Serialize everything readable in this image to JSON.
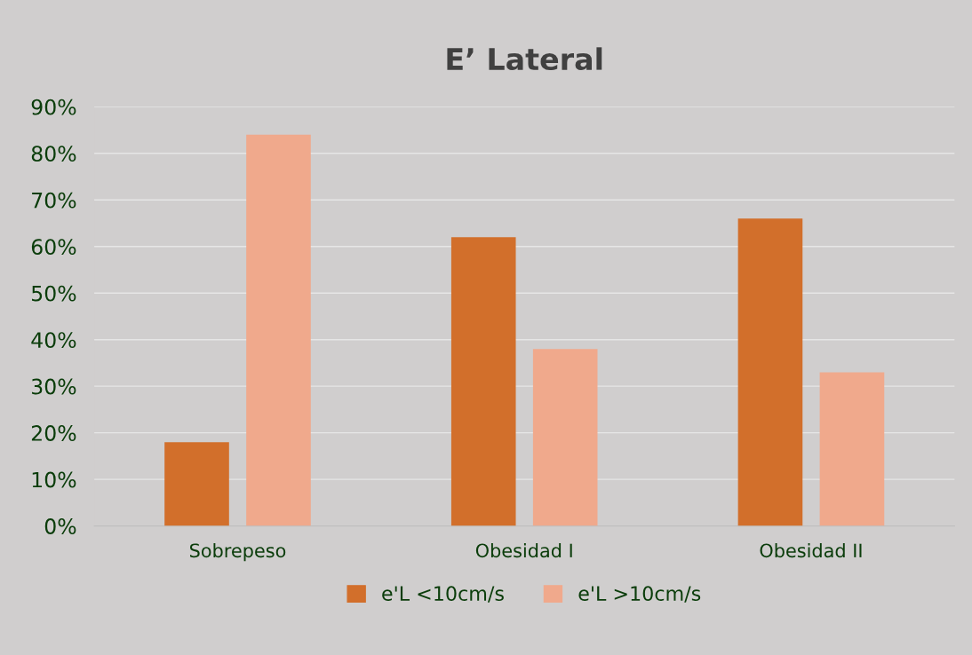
{
  "chart_data": {
    "type": "bar",
    "title": "E’ Lateral",
    "categories": [
      "Sobrepeso",
      "Obesidad I",
      "Obesidad II"
    ],
    "series": [
      {
        "name": "e'L <10cm/s",
        "color": "#d26f2b",
        "values": [
          18,
          62,
          66
        ]
      },
      {
        "name": "e'L >10cm/s",
        "color": "#f0a98c",
        "values": [
          84,
          38,
          33
        ]
      }
    ],
    "ylim": [
      0,
      90
    ],
    "yticks": [
      {
        "value": 0,
        "label": "0%"
      },
      {
        "value": 10,
        "label": "10%"
      },
      {
        "value": 20,
        "label": "20%"
      },
      {
        "value": 30,
        "label": "30%"
      },
      {
        "value": 40,
        "label": "40%"
      },
      {
        "value": 50,
        "label": "50%"
      },
      {
        "value": 60,
        "label": "60%"
      },
      {
        "value": 70,
        "label": "70%"
      },
      {
        "value": 80,
        "label": "80%"
      },
      {
        "value": 90,
        "label": "90%"
      }
    ],
    "grid": "y",
    "legend": "bottom"
  }
}
